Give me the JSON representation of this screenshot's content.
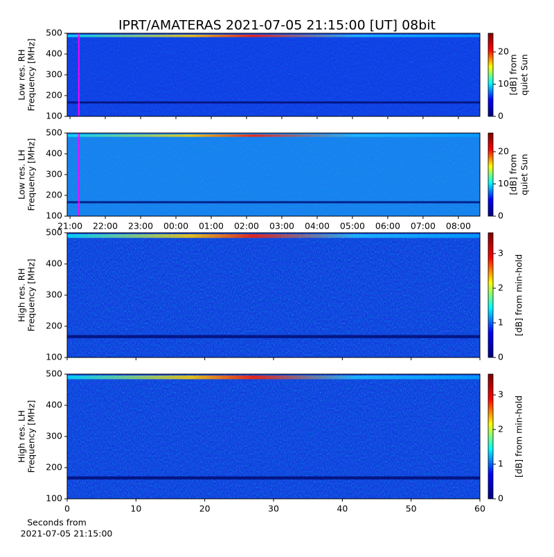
{
  "title": "IPRT/AMATERAS 2021-07-05 21:15:00 [UT]   08bit",
  "chart_data": [
    {
      "type": "heatmap",
      "ylabel": [
        "Low res. RH",
        "Frequency [MHz]"
      ],
      "xlim": [
        20.92,
        32.61
      ],
      "xticks": [
        {
          "value": 21,
          "label": "21:00"
        },
        {
          "value": 22,
          "label": "22:00"
        },
        {
          "value": 23,
          "label": "23:00"
        },
        {
          "value": 24,
          "label": "00:00"
        },
        {
          "value": 25,
          "label": "01:00"
        },
        {
          "value": 26,
          "label": "02:00"
        },
        {
          "value": 27,
          "label": "03:00"
        },
        {
          "value": 28,
          "label": "04:00"
        },
        {
          "value": 29,
          "label": "05:00"
        },
        {
          "value": 30,
          "label": "06:00"
        },
        {
          "value": 31,
          "label": "07:00"
        },
        {
          "value": 32,
          "label": "08:00"
        }
      ],
      "show_xtick_labels": false,
      "ylim": [
        100,
        500
      ],
      "yticks": [
        100,
        200,
        300,
        400,
        500
      ],
      "marker_x": 21.25,
      "marker_color": "#ff00ff",
      "colorbar": {
        "label": [
          "[dB] from",
          "quiet Sun"
        ],
        "lim": [
          0,
          25.8
        ],
        "ticks": [
          0,
          10,
          20
        ]
      },
      "colormap": [
        "#00007f",
        "#0000ff",
        "#00ffff",
        "#ffff00",
        "#ff0000",
        "#7f0000"
      ]
    },
    {
      "type": "heatmap",
      "ylabel": [
        "Low res. LH",
        "Frequency [MHz]"
      ],
      "xlim": [
        20.92,
        32.61
      ],
      "xticks": [
        {
          "value": 21,
          "label": "21:00"
        },
        {
          "value": 22,
          "label": "22:00"
        },
        {
          "value": 23,
          "label": "23:00"
        },
        {
          "value": 24,
          "label": "00:00"
        },
        {
          "value": 25,
          "label": "01:00"
        },
        {
          "value": 26,
          "label": "02:00"
        },
        {
          "value": 27,
          "label": "03:00"
        },
        {
          "value": 28,
          "label": "04:00"
        },
        {
          "value": 29,
          "label": "05:00"
        },
        {
          "value": 30,
          "label": "06:00"
        },
        {
          "value": 31,
          "label": "07:00"
        },
        {
          "value": 32,
          "label": "08:00"
        }
      ],
      "show_xtick_labels": true,
      "ylim": [
        100,
        500
      ],
      "yticks": [
        100,
        200,
        300,
        400,
        500
      ],
      "marker_x": 21.25,
      "marker_color": "#ff00ff",
      "colorbar": {
        "label": [
          "[dB] from",
          "quiet Sun"
        ],
        "lim": [
          0,
          25.8
        ],
        "ticks": [
          0,
          10,
          20
        ]
      },
      "colormap": [
        "#00007f",
        "#0000ff",
        "#00ffff",
        "#ffff00",
        "#ff0000",
        "#7f0000"
      ]
    },
    {
      "type": "heatmap",
      "ylabel": [
        "High res. RH",
        "Frequency [MHz]"
      ],
      "xlim": [
        0,
        60
      ],
      "xticks": [
        0,
        10,
        20,
        30,
        40,
        50,
        60
      ],
      "show_xtick_labels": false,
      "ylim": [
        100,
        500
      ],
      "yticks": [
        100,
        200,
        300,
        400,
        500
      ],
      "colorbar": {
        "label": [
          "[dB] from min-hold"
        ],
        "lim": [
          0,
          3.6
        ],
        "ticks": [
          0,
          1,
          2,
          3
        ]
      },
      "colormap": [
        "#00007f",
        "#0000ff",
        "#00ffff",
        "#ffff00",
        "#ff0000",
        "#7f0000"
      ]
    },
    {
      "type": "heatmap",
      "ylabel": [
        "High res. LH",
        "Frequency [MHz]"
      ],
      "xlabel": [
        "Seconds from",
        "2021-07-05 21:15:00"
      ],
      "xlim": [
        0,
        60
      ],
      "xticks": [
        0,
        10,
        20,
        30,
        40,
        50,
        60
      ],
      "show_xtick_labels": true,
      "ylim": [
        100,
        500
      ],
      "yticks": [
        100,
        200,
        300,
        400,
        500
      ],
      "colorbar": {
        "label": [
          "[dB] from min-hold"
        ],
        "lim": [
          0,
          3.6
        ],
        "ticks": [
          0,
          1,
          2,
          3
        ]
      },
      "colormap": [
        "#00007f",
        "#0000ff",
        "#00ffff",
        "#ffff00",
        "#ff0000",
        "#7f0000"
      ]
    }
  ]
}
